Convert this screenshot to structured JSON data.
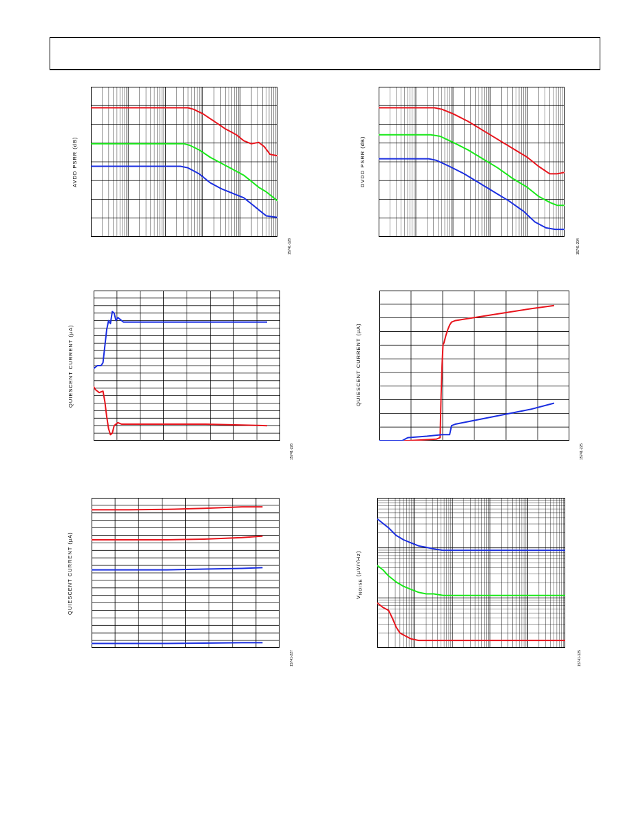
{
  "colors": {
    "red": "#e8141c",
    "green": "#18e818",
    "blue": "#1a2ee0",
    "grid": "#000000"
  },
  "chart_data": [
    {
      "type": "line",
      "ylabel": "AVDD PSRR (dB)",
      "figure_id": "15741-128",
      "xscale": "log",
      "grid": true,
      "xlim": [
        0,
        1
      ],
      "ylim": [
        0,
        1
      ],
      "series": [
        {
          "color": "red",
          "x": [
            0,
            0.52,
            0.55,
            0.6,
            0.66,
            0.72,
            0.78,
            0.82,
            0.86,
            0.9,
            0.93,
            0.96,
            1.0
          ],
          "y": [
            0.86,
            0.86,
            0.85,
            0.82,
            0.77,
            0.72,
            0.68,
            0.64,
            0.62,
            0.63,
            0.6,
            0.55,
            0.54
          ]
        },
        {
          "color": "green",
          "x": [
            0,
            0.5,
            0.53,
            0.58,
            0.64,
            0.7,
            0.76,
            0.82,
            0.86,
            0.9,
            0.94,
            1.0
          ],
          "y": [
            0.62,
            0.62,
            0.61,
            0.58,
            0.53,
            0.49,
            0.45,
            0.41,
            0.37,
            0.33,
            0.3,
            0.24
          ]
        },
        {
          "color": "blue",
          "x": [
            0,
            0.48,
            0.52,
            0.58,
            0.64,
            0.7,
            0.76,
            0.82,
            0.86,
            0.9,
            0.94,
            1.0
          ],
          "y": [
            0.47,
            0.47,
            0.46,
            0.42,
            0.36,
            0.32,
            0.29,
            0.26,
            0.22,
            0.18,
            0.14,
            0.13
          ]
        }
      ]
    },
    {
      "type": "line",
      "ylabel": "DVDD PSRR (dB)",
      "figure_id": "15741-204",
      "xscale": "log",
      "grid": true,
      "xlim": [
        0,
        1
      ],
      "ylim": [
        0,
        1
      ],
      "series": [
        {
          "color": "red",
          "x": [
            0,
            0.3,
            0.34,
            0.4,
            0.48,
            0.56,
            0.64,
            0.72,
            0.8,
            0.86,
            0.92,
            0.96,
            1.0
          ],
          "y": [
            0.86,
            0.86,
            0.85,
            0.82,
            0.77,
            0.71,
            0.65,
            0.59,
            0.53,
            0.47,
            0.42,
            0.42,
            0.43
          ]
        },
        {
          "color": "green",
          "x": [
            0,
            0.28,
            0.33,
            0.4,
            0.48,
            0.56,
            0.64,
            0.72,
            0.8,
            0.86,
            0.92,
            0.96,
            1.0
          ],
          "y": [
            0.68,
            0.68,
            0.67,
            0.63,
            0.58,
            0.52,
            0.46,
            0.39,
            0.33,
            0.27,
            0.23,
            0.21,
            0.21
          ]
        },
        {
          "color": "blue",
          "x": [
            0,
            0.27,
            0.31,
            0.38,
            0.46,
            0.54,
            0.62,
            0.7,
            0.78,
            0.84,
            0.9,
            0.95,
            1.0
          ],
          "y": [
            0.52,
            0.52,
            0.51,
            0.47,
            0.42,
            0.36,
            0.3,
            0.24,
            0.17,
            0.1,
            0.06,
            0.05,
            0.05
          ]
        }
      ]
    },
    {
      "type": "line",
      "ylabel": "QUIESCENT CURRENT (µA)",
      "figure_id": "15741-226",
      "grid": true,
      "xlim": [
        0,
        1
      ],
      "ylim": [
        0,
        1
      ],
      "series": [
        {
          "color": "blue",
          "x": [
            0,
            0.02,
            0.04,
            0.05,
            0.07,
            0.08,
            0.09,
            0.1,
            0.11,
            0.12,
            0.13,
            0.16,
            0.3,
            0.6,
            0.93
          ],
          "y": [
            0.48,
            0.5,
            0.5,
            0.52,
            0.74,
            0.8,
            0.78,
            0.86,
            0.85,
            0.8,
            0.82,
            0.79,
            0.79,
            0.79,
            0.79
          ]
        },
        {
          "color": "red",
          "x": [
            0,
            0.01,
            0.03,
            0.05,
            0.06,
            0.07,
            0.08,
            0.09,
            0.1,
            0.11,
            0.13,
            0.15,
            0.3,
            0.6,
            0.93
          ],
          "y": [
            0.36,
            0.34,
            0.32,
            0.33,
            0.26,
            0.16,
            0.08,
            0.04,
            0.05,
            0.1,
            0.12,
            0.11,
            0.11,
            0.11,
            0.1
          ]
        }
      ]
    },
    {
      "type": "line",
      "ylabel": "QUIESCENT CURRENT (µA)",
      "figure_id": "15741-225",
      "grid": true,
      "xlim": [
        0,
        1
      ],
      "ylim": [
        0,
        1
      ],
      "series": [
        {
          "color": "red",
          "x": [
            0,
            0.15,
            0.3,
            0.32,
            0.325,
            0.33,
            0.335,
            0.34,
            0.35,
            0.36,
            0.37,
            0.38,
            0.4,
            0.45,
            0.6,
            0.8,
            0.92
          ],
          "y": [
            0.0,
            0.0,
            0.01,
            0.02,
            0.3,
            0.5,
            0.64,
            0.65,
            0.7,
            0.74,
            0.77,
            0.79,
            0.8,
            0.81,
            0.84,
            0.88,
            0.9
          ]
        },
        {
          "color": "blue",
          "x": [
            0,
            0.12,
            0.15,
            0.25,
            0.33,
            0.37,
            0.38,
            0.4,
            0.6,
            0.8,
            0.92
          ],
          "y": [
            0.0,
            0.0,
            0.02,
            0.03,
            0.04,
            0.04,
            0.1,
            0.11,
            0.16,
            0.21,
            0.25
          ]
        }
      ]
    },
    {
      "type": "line",
      "ylabel": "QUIESCENT CURRENT (µA)",
      "figure_id": "15741-227",
      "grid": true,
      "xlim": [
        0,
        1
      ],
      "ylim": [
        0,
        1
      ],
      "series": [
        {
          "color": "red",
          "x": [
            0,
            0.2,
            0.4,
            0.6,
            0.8,
            0.91
          ],
          "y": [
            0.92,
            0.92,
            0.923,
            0.93,
            0.94,
            0.94
          ]
        },
        {
          "color": "red",
          "x": [
            0,
            0.2,
            0.4,
            0.6,
            0.8,
            0.91
          ],
          "y": [
            0.72,
            0.72,
            0.72,
            0.725,
            0.735,
            0.745
          ]
        },
        {
          "color": "blue",
          "x": [
            0,
            0.2,
            0.4,
            0.6,
            0.8,
            0.91
          ],
          "y": [
            0.52,
            0.52,
            0.52,
            0.525,
            0.53,
            0.535
          ]
        },
        {
          "color": "blue",
          "x": [
            0,
            0.2,
            0.4,
            0.6,
            0.8,
            0.91
          ],
          "y": [
            0.03,
            0.03,
            0.03,
            0.032,
            0.035,
            0.035
          ]
        }
      ]
    },
    {
      "type": "line",
      "ylabel": "V",
      "ylabel_sub": "NOISE",
      "ylabel_units": " (µV/√Hz)",
      "figure_id": "15741-125",
      "xscale": "log",
      "yscale": "log",
      "grid": true,
      "xlim": [
        0,
        1
      ],
      "ylim": [
        0,
        1
      ],
      "series": [
        {
          "color": "blue",
          "x": [
            0,
            0.03,
            0.06,
            0.1,
            0.14,
            0.18,
            0.22,
            0.26,
            0.3,
            0.35,
            0.45,
            0.6,
            0.8,
            1.0
          ],
          "y": [
            0.86,
            0.83,
            0.8,
            0.75,
            0.72,
            0.7,
            0.68,
            0.67,
            0.66,
            0.65,
            0.65,
            0.65,
            0.65,
            0.65
          ]
        },
        {
          "color": "green",
          "x": [
            0,
            0.03,
            0.06,
            0.1,
            0.14,
            0.18,
            0.22,
            0.26,
            0.3,
            0.35,
            0.45,
            0.6,
            0.8,
            1.0
          ],
          "y": [
            0.55,
            0.52,
            0.48,
            0.44,
            0.41,
            0.39,
            0.37,
            0.36,
            0.36,
            0.35,
            0.35,
            0.35,
            0.35,
            0.35
          ]
        },
        {
          "color": "red",
          "x": [
            0,
            0.03,
            0.06,
            0.08,
            0.1,
            0.12,
            0.15,
            0.18,
            0.22,
            0.26,
            0.3,
            0.4,
            0.6,
            0.8,
            1.0
          ],
          "y": [
            0.3,
            0.27,
            0.25,
            0.2,
            0.14,
            0.1,
            0.08,
            0.06,
            0.05,
            0.05,
            0.05,
            0.05,
            0.05,
            0.05,
            0.05
          ]
        }
      ]
    }
  ]
}
